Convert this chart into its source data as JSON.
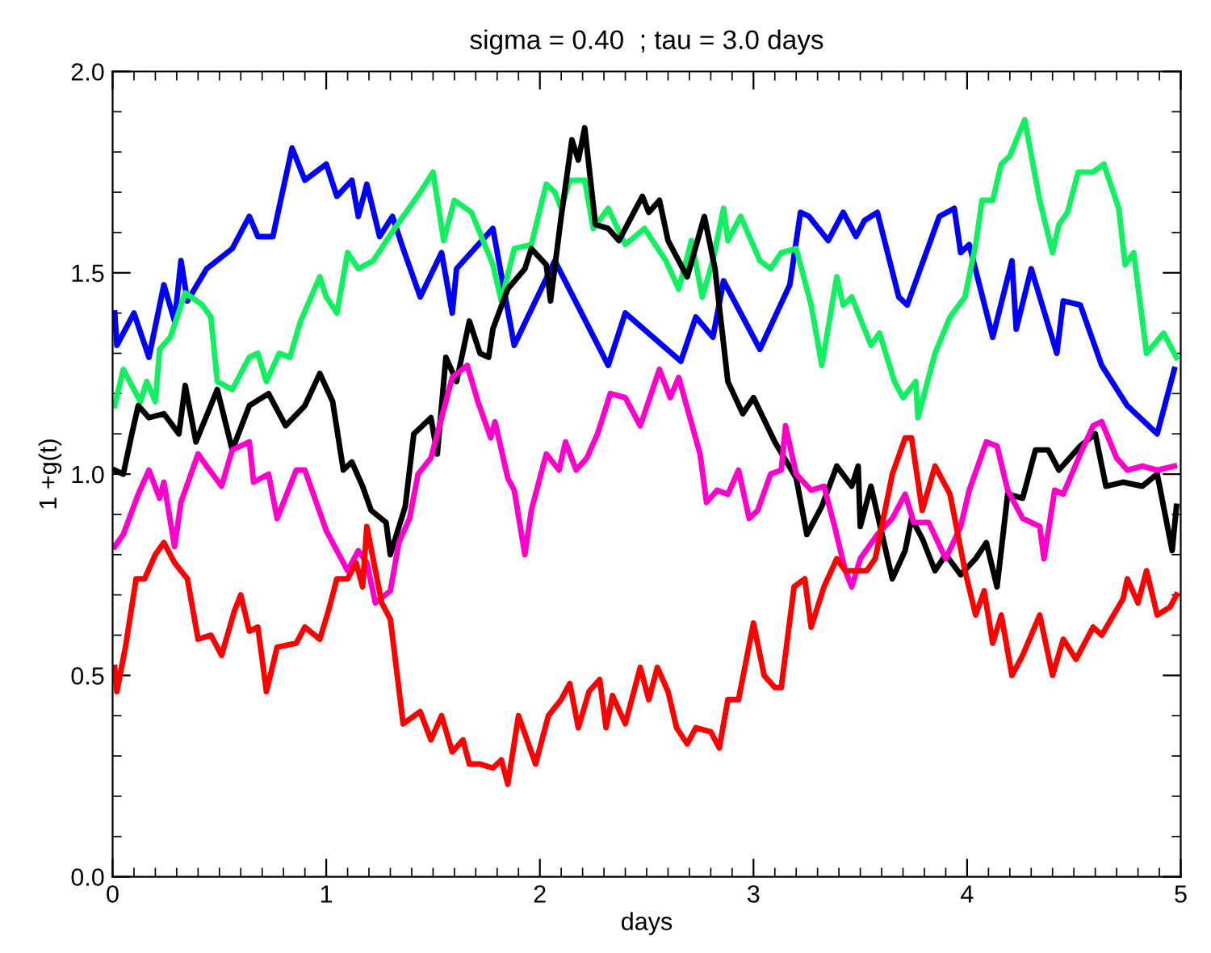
{
  "chart_data": {
    "type": "line",
    "title": "sigma = 0.40  ; tau = 3.0 days",
    "xlabel": "days",
    "ylabel": "1 +g(t)",
    "xlim": [
      0,
      5
    ],
    "ylim": [
      0,
      2
    ],
    "xticks": [
      0,
      1,
      2,
      3,
      4,
      5
    ],
    "yticks": [
      {
        "value": 0,
        "label": "0.0"
      },
      {
        "value": 0.5,
        "label": "0.5"
      },
      {
        "value": 1,
        "label": "1.0"
      },
      {
        "value": 1.5,
        "label": "1.5"
      },
      {
        "value": 2,
        "label": "2.0"
      }
    ],
    "grid": false,
    "legend": false,
    "marker": "none",
    "line_style": "solid",
    "series": [
      {
        "color": "#0000ff",
        "x": [
          0.01,
          0.02,
          0.1,
          0.17,
          0.24,
          0.29,
          0.32,
          0.35,
          0.44,
          0.56,
          0.64,
          0.68,
          0.75,
          0.84,
          0.9,
          1.0,
          1.05,
          1.12,
          1.15,
          1.19,
          1.25,
          1.31,
          1.36,
          1.44,
          1.54,
          1.59,
          1.61,
          1.78,
          1.88,
          2.07,
          2.32,
          2.4,
          2.66,
          2.73,
          2.81,
          2.86,
          3.03,
          3.17,
          3.22,
          3.26,
          3.35,
          3.42,
          3.48,
          3.52,
          3.58,
          3.68,
          3.72,
          3.87,
          3.94,
          3.97,
          4.01,
          4.12,
          4.21,
          4.23,
          4.3,
          4.42,
          4.45,
          4.53,
          4.63,
          4.75,
          4.89,
          4.97
        ],
        "values": [
          1.4,
          1.32,
          1.4,
          1.29,
          1.47,
          1.38,
          1.53,
          1.43,
          1.51,
          1.56,
          1.64,
          1.59,
          1.59,
          1.81,
          1.73,
          1.77,
          1.69,
          1.73,
          1.64,
          1.72,
          1.59,
          1.64,
          1.56,
          1.44,
          1.55,
          1.4,
          1.51,
          1.61,
          1.32,
          1.53,
          1.27,
          1.4,
          1.28,
          1.39,
          1.34,
          1.48,
          1.31,
          1.47,
          1.65,
          1.64,
          1.58,
          1.65,
          1.59,
          1.63,
          1.65,
          1.44,
          1.42,
          1.64,
          1.66,
          1.55,
          1.57,
          1.34,
          1.53,
          1.36,
          1.51,
          1.3,
          1.43,
          1.42,
          1.27,
          1.17,
          1.1,
          1.26
        ]
      },
      {
        "color": "#10f060",
        "x": [
          0.01,
          0.05,
          0.1,
          0.13,
          0.16,
          0.2,
          0.22,
          0.27,
          0.34,
          0.42,
          0.46,
          0.49,
          0.56,
          0.64,
          0.68,
          0.72,
          0.78,
          0.83,
          0.88,
          0.97,
          1.0,
          1.05,
          1.1,
          1.15,
          1.22,
          1.32,
          1.44,
          1.5,
          1.55,
          1.6,
          1.68,
          1.78,
          1.82,
          1.88,
          1.96,
          2.03,
          2.07,
          2.1,
          2.14,
          2.21,
          2.25,
          2.32,
          2.4,
          2.49,
          2.59,
          2.65,
          2.71,
          2.76,
          2.81,
          2.86,
          2.88,
          2.94,
          3.03,
          3.08,
          3.13,
          3.2,
          3.27,
          3.32,
          3.39,
          3.42,
          3.46,
          3.55,
          3.59,
          3.66,
          3.7,
          3.76,
          3.77,
          3.85,
          3.92,
          3.99,
          4.04,
          4.07,
          4.12,
          4.16,
          4.2,
          4.27,
          4.34,
          4.4,
          4.43,
          4.47,
          4.52,
          4.59,
          4.64,
          4.71,
          4.74,
          4.78,
          4.84,
          4.92,
          4.98
        ],
        "values": [
          1.17,
          1.26,
          1.21,
          1.18,
          1.23,
          1.18,
          1.31,
          1.34,
          1.45,
          1.42,
          1.39,
          1.23,
          1.21,
          1.29,
          1.3,
          1.23,
          1.3,
          1.29,
          1.38,
          1.49,
          1.44,
          1.4,
          1.55,
          1.51,
          1.53,
          1.61,
          1.7,
          1.75,
          1.58,
          1.68,
          1.65,
          1.52,
          1.43,
          1.56,
          1.57,
          1.72,
          1.7,
          1.66,
          1.73,
          1.73,
          1.61,
          1.66,
          1.57,
          1.61,
          1.53,
          1.46,
          1.58,
          1.44,
          1.53,
          1.66,
          1.58,
          1.64,
          1.53,
          1.51,
          1.55,
          1.56,
          1.42,
          1.27,
          1.49,
          1.42,
          1.44,
          1.32,
          1.35,
          1.23,
          1.19,
          1.23,
          1.14,
          1.3,
          1.39,
          1.44,
          1.57,
          1.68,
          1.68,
          1.77,
          1.79,
          1.88,
          1.68,
          1.55,
          1.62,
          1.65,
          1.75,
          1.75,
          1.77,
          1.66,
          1.52,
          1.55,
          1.3,
          1.35,
          1.29
        ]
      },
      {
        "color": "#000000",
        "x": [
          0.01,
          0.05,
          0.09,
          0.12,
          0.17,
          0.24,
          0.31,
          0.34,
          0.39,
          0.49,
          0.56,
          0.64,
          0.73,
          0.81,
          0.9,
          0.97,
          1.03,
          1.08,
          1.12,
          1.17,
          1.21,
          1.28,
          1.3,
          1.37,
          1.41,
          1.49,
          1.52,
          1.56,
          1.61,
          1.67,
          1.72,
          1.76,
          1.78,
          1.85,
          1.93,
          1.96,
          2.03,
          2.05,
          2.1,
          2.15,
          2.18,
          2.21,
          2.26,
          2.32,
          2.37,
          2.48,
          2.51,
          2.56,
          2.6,
          2.69,
          2.77,
          2.82,
          2.88,
          2.95,
          3.0,
          3.1,
          3.2,
          3.25,
          3.32,
          3.39,
          3.46,
          3.49,
          3.5,
          3.55,
          3.65,
          3.71,
          3.74,
          3.79,
          3.85,
          3.9,
          3.97,
          4.04,
          4.09,
          4.14,
          4.19,
          4.26,
          4.32,
          4.38,
          4.43,
          4.53,
          4.6,
          4.65,
          4.73,
          4.82,
          4.89,
          4.96,
          4.98
        ],
        "values": [
          1.01,
          1.0,
          1.1,
          1.17,
          1.14,
          1.15,
          1.1,
          1.22,
          1.08,
          1.21,
          1.06,
          1.17,
          1.2,
          1.12,
          1.17,
          1.25,
          1.18,
          1.01,
          1.03,
          0.97,
          0.91,
          0.88,
          0.8,
          0.92,
          1.1,
          1.14,
          1.05,
          1.29,
          1.23,
          1.38,
          1.3,
          1.29,
          1.36,
          1.46,
          1.51,
          1.56,
          1.52,
          1.43,
          1.64,
          1.83,
          1.78,
          1.86,
          1.62,
          1.61,
          1.58,
          1.69,
          1.65,
          1.68,
          1.58,
          1.49,
          1.64,
          1.51,
          1.23,
          1.15,
          1.19,
          1.08,
          0.99,
          0.85,
          0.92,
          1.02,
          0.97,
          1.02,
          0.87,
          0.97,
          0.74,
          0.81,
          0.89,
          0.84,
          0.76,
          0.8,
          0.75,
          0.79,
          0.83,
          0.72,
          0.95,
          0.94,
          1.06,
          1.06,
          1.01,
          1.07,
          1.1,
          0.97,
          0.98,
          0.97,
          1.0,
          0.81,
          0.92
        ]
      },
      {
        "color": "#ff00cc",
        "x": [
          0.01,
          0.05,
          0.12,
          0.17,
          0.22,
          0.24,
          0.29,
          0.32,
          0.4,
          0.44,
          0.51,
          0.56,
          0.64,
          0.66,
          0.73,
          0.77,
          0.86,
          0.9,
          1.0,
          1.1,
          1.15,
          1.19,
          1.23,
          1.3,
          1.34,
          1.39,
          1.43,
          1.49,
          1.59,
          1.66,
          1.71,
          1.77,
          1.79,
          1.85,
          1.88,
          1.93,
          1.96,
          2.03,
          2.09,
          2.12,
          2.17,
          2.22,
          2.27,
          2.33,
          2.4,
          2.47,
          2.56,
          2.61,
          2.65,
          2.75,
          2.78,
          2.83,
          2.88,
          2.93,
          2.98,
          3.02,
          3.08,
          3.13,
          3.15,
          3.2,
          3.27,
          3.33,
          3.38,
          3.43,
          3.46,
          3.5,
          3.58,
          3.65,
          3.71,
          3.75,
          3.82,
          3.9,
          3.97,
          4.01,
          4.09,
          4.14,
          4.19,
          4.26,
          4.34,
          4.36,
          4.41,
          4.45,
          4.53,
          4.59,
          4.63,
          4.7,
          4.75,
          4.82,
          4.89,
          4.97
        ],
        "values": [
          0.82,
          0.85,
          0.95,
          1.01,
          0.94,
          0.98,
          0.82,
          0.93,
          1.05,
          1.02,
          0.97,
          1.06,
          1.08,
          0.98,
          1.0,
          0.89,
          1.01,
          1.01,
          0.86,
          0.76,
          0.81,
          0.78,
          0.68,
          0.71,
          0.83,
          0.89,
          1.0,
          1.04,
          1.24,
          1.27,
          1.18,
          1.09,
          1.13,
          0.99,
          0.96,
          0.8,
          0.91,
          1.05,
          1.01,
          1.08,
          1.01,
          1.04,
          1.1,
          1.2,
          1.19,
          1.12,
          1.26,
          1.19,
          1.24,
          1.05,
          0.93,
          0.96,
          0.95,
          1.01,
          0.89,
          0.91,
          1.0,
          1.01,
          1.12,
          1.0,
          0.96,
          0.97,
          0.87,
          0.76,
          0.72,
          0.79,
          0.85,
          0.89,
          0.95,
          0.88,
          0.88,
          0.79,
          0.87,
          0.96,
          1.08,
          1.07,
          0.96,
          0.89,
          0.87,
          0.79,
          0.96,
          0.95,
          1.05,
          1.12,
          1.13,
          1.04,
          1.01,
          1.02,
          1.01,
          1.02
        ]
      },
      {
        "color": "#ff0000",
        "x": [
          0.01,
          0.02,
          0.06,
          0.11,
          0.15,
          0.2,
          0.24,
          0.29,
          0.35,
          0.4,
          0.46,
          0.51,
          0.57,
          0.6,
          0.64,
          0.68,
          0.72,
          0.77,
          0.86,
          0.9,
          0.97,
          1.01,
          1.05,
          1.1,
          1.14,
          1.17,
          1.19,
          1.26,
          1.3,
          1.36,
          1.44,
          1.49,
          1.54,
          1.59,
          1.64,
          1.67,
          1.72,
          1.78,
          1.82,
          1.85,
          1.9,
          1.98,
          2.04,
          2.1,
          2.14,
          2.18,
          2.23,
          2.28,
          2.31,
          2.34,
          2.4,
          2.47,
          2.51,
          2.55,
          2.6,
          2.64,
          2.69,
          2.73,
          2.8,
          2.84,
          2.88,
          2.93,
          3.0,
          3.05,
          3.1,
          3.13,
          3.19,
          3.24,
          3.27,
          3.33,
          3.39,
          3.43,
          3.53,
          3.57,
          3.65,
          3.71,
          3.74,
          3.79,
          3.85,
          3.92,
          3.99,
          4.04,
          4.08,
          4.12,
          4.16,
          4.21,
          4.26,
          4.34,
          4.4,
          4.45,
          4.51,
          4.59,
          4.63,
          4.73,
          4.75,
          4.8,
          4.84,
          4.89,
          4.95,
          4.98
        ],
        "values": [
          0.52,
          0.46,
          0.57,
          0.74,
          0.74,
          0.8,
          0.83,
          0.78,
          0.74,
          0.59,
          0.6,
          0.55,
          0.66,
          0.7,
          0.61,
          0.62,
          0.46,
          0.57,
          0.58,
          0.62,
          0.59,
          0.66,
          0.74,
          0.74,
          0.78,
          0.72,
          0.87,
          0.68,
          0.64,
          0.38,
          0.41,
          0.34,
          0.4,
          0.31,
          0.34,
          0.28,
          0.28,
          0.27,
          0.29,
          0.23,
          0.4,
          0.28,
          0.4,
          0.44,
          0.48,
          0.37,
          0.46,
          0.49,
          0.37,
          0.45,
          0.38,
          0.52,
          0.44,
          0.52,
          0.46,
          0.37,
          0.33,
          0.37,
          0.36,
          0.32,
          0.44,
          0.44,
          0.63,
          0.5,
          0.47,
          0.47,
          0.72,
          0.74,
          0.62,
          0.72,
          0.79,
          0.76,
          0.76,
          0.79,
          1.0,
          1.09,
          1.09,
          0.91,
          1.02,
          0.95,
          0.76,
          0.65,
          0.71,
          0.58,
          0.65,
          0.5,
          0.55,
          0.65,
          0.5,
          0.59,
          0.54,
          0.62,
          0.6,
          0.69,
          0.74,
          0.68,
          0.76,
          0.65,
          0.67,
          0.7
        ]
      }
    ]
  }
}
